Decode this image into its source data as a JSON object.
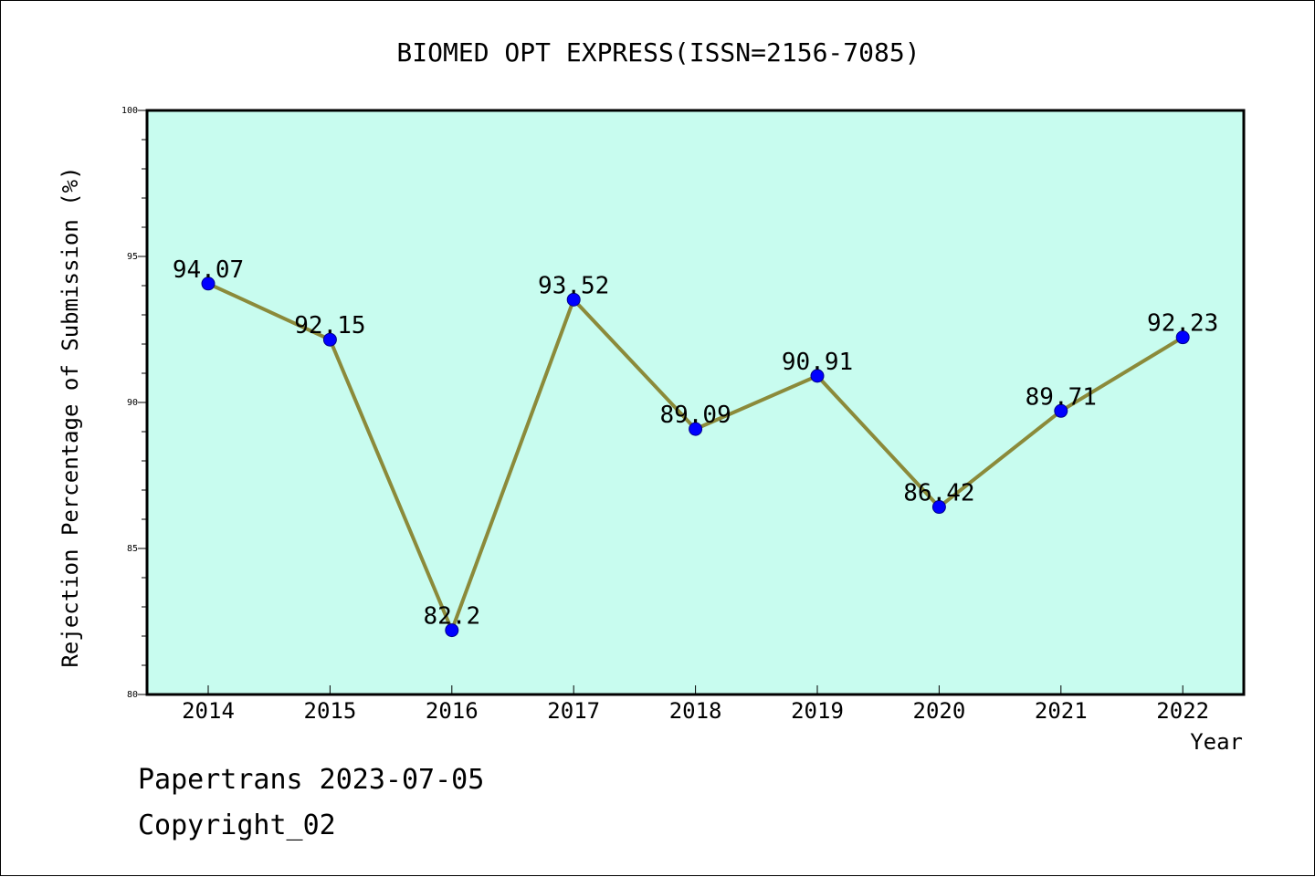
{
  "chart_data": {
    "type": "line",
    "title": "BIOMED OPT EXPRESS(ISSN=2156-7085)",
    "xlabel": "Year",
    "ylabel": "Rejection Percentage of Submission (%)",
    "x": [
      "2014",
      "2015",
      "2016",
      "2017",
      "2018",
      "2019",
      "2020",
      "2021",
      "2022"
    ],
    "series": [
      {
        "values": [
          94.07,
          92.15,
          82.2,
          93.52,
          89.09,
          90.91,
          86.42,
          89.71,
          92.23
        ]
      }
    ],
    "data_labels": [
      "94.07",
      "92.15",
      "82.2",
      "93.52",
      "89.09",
      "90.91",
      "86.42",
      "89.71",
      "92.23"
    ],
    "ylim": [
      80,
      100
    ],
    "yticks": [
      "80",
      "85",
      "90",
      "95",
      "100"
    ],
    "grid": false,
    "colors": {
      "plot_bg": "#c8fcef",
      "line": "#8b8a3a",
      "marker": "#0000ff"
    }
  },
  "footer": {
    "line1": "Papertrans 2023-07-05",
    "line2": "Copyright_02"
  }
}
